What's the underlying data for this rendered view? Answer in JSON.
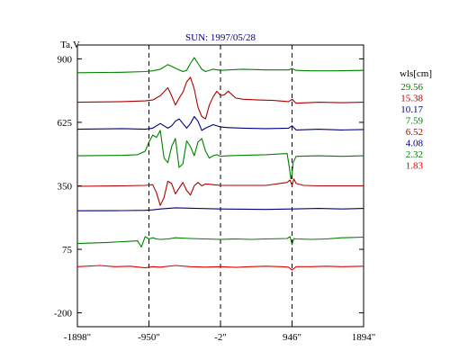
{
  "chart_data": {
    "type": "line",
    "title": "SUN: 1997/05/28",
    "ylabel": "Ta,V",
    "xlabel": "",
    "x_ticks": [
      {
        "value": -1898,
        "label": "-1898\""
      },
      {
        "value": -950,
        "label": "-950\""
      },
      {
        "value": -2,
        "label": "-2\""
      },
      {
        "value": 946,
        "label": "946\""
      },
      {
        "value": 1894,
        "label": "1894\""
      }
    ],
    "y_ticks": [
      900,
      625,
      350,
      75,
      -200
    ],
    "xlim": [
      -1898,
      1894
    ],
    "ylim": [
      -260,
      960
    ],
    "grid": "vertical dashed lines at -950, -2, 946",
    "vlines": [
      -950,
      -2,
      946
    ],
    "legend": {
      "title": "wls[cm]",
      "placement": "right",
      "entries": [
        {
          "label": "29.56",
          "color": "#008000"
        },
        {
          "label": "15.38",
          "color": "#b00000"
        },
        {
          "label": "10.17",
          "color": "#000080"
        },
        {
          "label": "7.59",
          "color": "#008000"
        },
        {
          "label": "6.52",
          "color": "#b00000"
        },
        {
          "label": "4.08",
          "color": "#000080"
        },
        {
          "label": "2.32",
          "color": "#008000"
        },
        {
          "label": "1.83",
          "color": "#e00000"
        }
      ]
    },
    "series": [
      {
        "name": "29.56",
        "color": "#008000",
        "x": [
          -1898,
          -1300,
          -1000,
          -900,
          -800,
          -700,
          -600,
          -500,
          -450,
          -400,
          -350,
          -300,
          -250,
          -200,
          -100,
          0,
          100,
          300,
          600,
          900,
          946,
          1000,
          1200,
          1500,
          1894
        ],
        "y": [
          840,
          842,
          845,
          848,
          855,
          875,
          860,
          845,
          850,
          880,
          905,
          880,
          855,
          845,
          855,
          850,
          852,
          855,
          852,
          852,
          858,
          850,
          848,
          848,
          850
        ]
      },
      {
        "name": "15.38",
        "color": "#b00000",
        "x": [
          -1898,
          -1300,
          -1000,
          -900,
          -800,
          -700,
          -650,
          -600,
          -550,
          -500,
          -450,
          -400,
          -350,
          -300,
          -250,
          -200,
          -150,
          -100,
          -50,
          0,
          50,
          100,
          200,
          300,
          500,
          700,
          900,
          946,
          1000,
          1300,
          1600,
          1894
        ],
        "y": [
          712,
          715,
          718,
          722,
          740,
          775,
          740,
          700,
          730,
          755,
          800,
          820,
          770,
          690,
          650,
          640,
          700,
          735,
          760,
          740,
          745,
          760,
          730,
          725,
          722,
          720,
          715,
          725,
          708,
          712,
          710,
          712
        ]
      },
      {
        "name": "10.17",
        "color": "#000080",
        "x": [
          -1898,
          -1300,
          -1000,
          -900,
          -800,
          -750,
          -700,
          -650,
          -600,
          -550,
          -500,
          -450,
          -400,
          -350,
          -300,
          -250,
          -200,
          -100,
          0,
          100,
          300,
          600,
          900,
          946,
          1000,
          1300,
          1600,
          1894
        ],
        "y": [
          595,
          598,
          595,
          600,
          620,
          610,
          600,
          610,
          630,
          640,
          620,
          600,
          620,
          650,
          630,
          590,
          600,
          615,
          605,
          602,
          600,
          598,
          600,
          610,
          592,
          595,
          592,
          594
        ]
      },
      {
        "name": "7.59",
        "color": "#008000",
        "x": [
          -1898,
          -1300,
          -1100,
          -1000,
          -950,
          -900,
          -850,
          -800,
          -750,
          -700,
          -650,
          -600,
          -550,
          -500,
          -450,
          -400,
          -350,
          -300,
          -250,
          -200,
          -150,
          -100,
          -50,
          0,
          100,
          300,
          600,
          880,
          910,
          930,
          946,
          960,
          1000,
          1300,
          1600,
          1894
        ],
        "y": [
          480,
          482,
          485,
          500,
          540,
          570,
          560,
          590,
          470,
          450,
          520,
          555,
          430,
          445,
          545,
          520,
          480,
          540,
          555,
          500,
          470,
          480,
          485,
          478,
          480,
          482,
          485,
          490,
          430,
          380,
          400,
          450,
          478,
          480,
          478,
          480
        ]
      },
      {
        "name": "6.52",
        "color": "#b00000",
        "x": [
          -1898,
          -1300,
          -1000,
          -900,
          -850,
          -800,
          -750,
          -700,
          -650,
          -600,
          -550,
          -500,
          -450,
          -400,
          -350,
          -300,
          -250,
          -200,
          -100,
          0,
          300,
          600,
          880,
          920,
          946,
          970,
          1000,
          1100,
          1300,
          1600,
          1894
        ],
        "y": [
          348,
          350,
          352,
          355,
          320,
          265,
          300,
          370,
          360,
          315,
          340,
          365,
          330,
          310,
          350,
          365,
          350,
          358,
          355,
          352,
          352,
          352,
          365,
          375,
          352,
          380,
          360,
          352,
          350,
          350,
          350
        ]
      },
      {
        "name": "4.08",
        "color": "#000080",
        "x": [
          -1898,
          -1300,
          -1000,
          -900,
          -800,
          -600,
          -300,
          0,
          300,
          600,
          946,
          1300,
          1600,
          1894
        ],
        "y": [
          242,
          243,
          244,
          246,
          250,
          255,
          252,
          250,
          249,
          248,
          250,
          252,
          250,
          252
        ]
      },
      {
        "name": "2.32",
        "color": "#008000",
        "x": [
          -1898,
          -1500,
          -1200,
          -1100,
          -1050,
          -1000,
          -950,
          -900,
          -850,
          -800,
          -700,
          -600,
          -400,
          -200,
          0,
          200,
          400,
          600,
          880,
          920,
          946,
          970,
          1000,
          1200,
          1400,
          1600,
          1894
        ],
        "y": [
          100,
          105,
          110,
          112,
          85,
          130,
          120,
          125,
          120,
          118,
          120,
          125,
          122,
          120,
          118,
          120,
          118,
          120,
          122,
          130,
          95,
          122,
          120,
          118,
          120,
          125,
          128
        ]
      },
      {
        "name": "1.83",
        "color": "#e00000",
        "x": [
          -1898,
          -1600,
          -1400,
          -1200,
          -1000,
          -900,
          -800,
          -600,
          -400,
          -200,
          0,
          200,
          400,
          600,
          800,
          900,
          946,
          1000,
          1200,
          1400,
          1600,
          1894
        ],
        "y": [
          0,
          5,
          0,
          2,
          -5,
          0,
          -2,
          5,
          0,
          -2,
          0,
          -3,
          0,
          2,
          0,
          -2,
          -15,
          0,
          0,
          2,
          0,
          2
        ]
      }
    ]
  }
}
